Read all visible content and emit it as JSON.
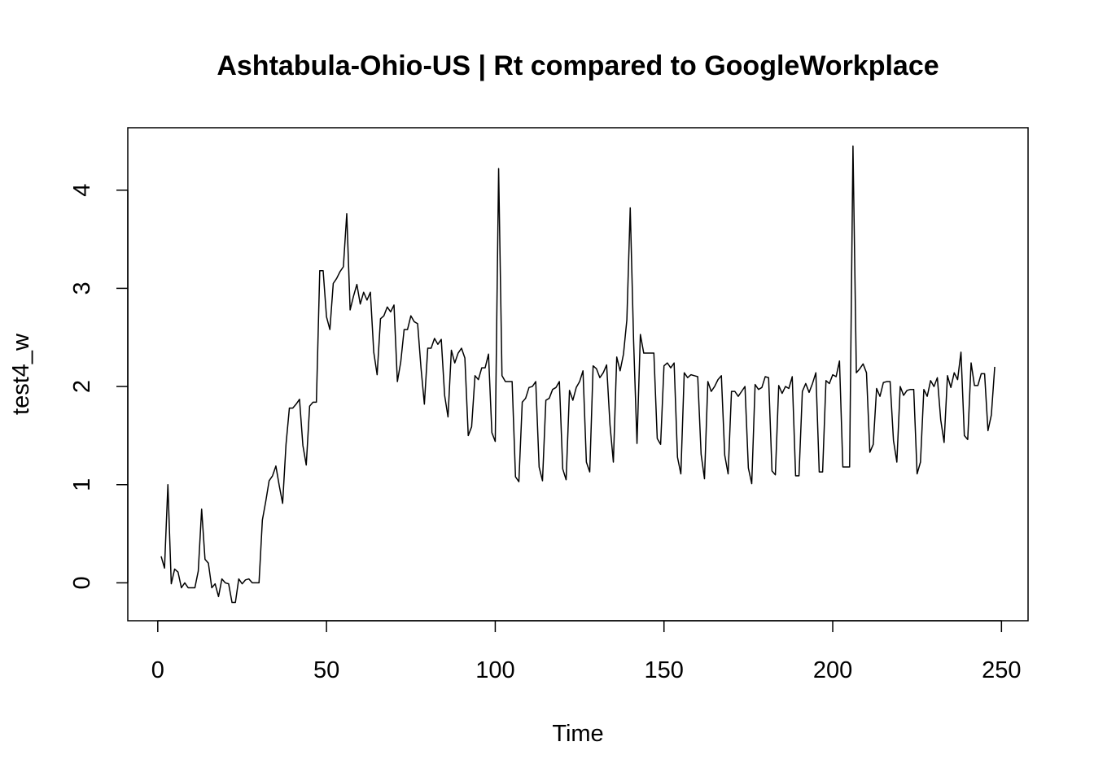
{
  "chart_data": {
    "type": "line",
    "title": "Ashtabula-Ohio-US | Rt compared to GoogleWorkplace",
    "x_label": "Time",
    "y_label": "test4_w",
    "x": [
      1,
      2,
      3,
      4,
      5,
      6,
      7,
      8,
      9,
      10,
      11,
      12,
      13,
      14,
      15,
      16,
      17,
      18,
      19,
      20,
      21,
      22,
      23,
      24,
      25,
      26,
      27,
      28,
      29,
      30,
      31,
      32,
      33,
      34,
      35,
      36,
      37,
      38,
      39,
      40,
      41,
      42,
      43,
      44,
      45,
      46,
      47,
      48,
      49,
      50,
      51,
      52,
      53,
      54,
      55,
      56,
      57,
      58,
      59,
      60,
      61,
      62,
      63,
      64,
      65,
      66,
      67,
      68,
      69,
      70,
      71,
      72,
      73,
      74,
      75,
      76,
      77,
      78,
      79,
      80,
      81,
      82,
      83,
      84,
      85,
      86,
      87,
      88,
      89,
      90,
      91,
      92,
      93,
      94,
      95,
      96,
      97,
      98,
      99,
      100,
      101,
      102,
      103,
      104,
      105,
      106,
      107,
      108,
      109,
      110,
      111,
      112,
      113,
      114,
      115,
      116,
      117,
      118,
      119,
      120,
      121,
      122,
      123,
      124,
      125,
      126,
      127,
      128,
      129,
      130,
      131,
      132,
      133,
      134,
      135,
      136,
      137,
      138,
      139,
      140,
      141,
      142,
      143,
      144,
      145,
      146,
      147,
      148,
      149,
      150,
      151,
      152,
      153,
      154,
      155,
      156,
      157,
      158,
      159,
      160,
      161,
      162,
      163,
      164,
      165,
      166,
      167,
      168,
      169,
      170,
      171,
      172,
      173,
      174,
      175,
      176,
      177,
      178,
      179,
      180,
      181,
      182,
      183,
      184,
      185,
      186,
      187,
      188,
      189,
      190,
      191,
      192,
      193,
      194,
      195,
      196,
      197,
      198,
      199,
      200,
      201,
      202,
      203,
      204,
      205,
      206,
      207,
      208,
      209,
      210,
      211,
      212,
      213,
      214,
      215,
      216,
      217,
      218,
      219,
      220,
      221,
      222,
      223,
      224,
      225,
      226,
      227,
      228,
      229,
      230,
      231,
      232,
      233,
      234,
      235,
      236,
      237,
      238,
      239,
      240,
      241,
      242,
      243,
      244,
      245,
      246,
      247,
      248
    ],
    "series": [
      {
        "color": "#000000",
        "values": [
          0.27,
          0.15,
          1.0,
          -0.01,
          0.14,
          0.11,
          -0.05,
          0.0,
          -0.05,
          -0.05,
          -0.05,
          0.12,
          0.75,
          0.24,
          0.2,
          -0.05,
          -0.01,
          -0.14,
          0.04,
          0.0,
          -0.01,
          -0.2,
          -0.2,
          0.04,
          -0.01,
          0.03,
          0.04,
          0.0,
          0.0,
          0.0,
          0.64,
          0.83,
          1.04,
          1.09,
          1.19,
          0.99,
          0.81,
          1.41,
          1.78,
          1.78,
          1.82,
          1.87,
          1.4,
          1.2,
          1.8,
          1.84,
          1.84,
          3.18,
          3.18,
          2.71,
          2.58,
          3.05,
          3.1,
          3.17,
          3.22,
          3.76,
          2.78,
          2.92,
          3.04,
          2.84,
          2.96,
          2.88,
          2.96,
          2.35,
          2.12,
          2.69,
          2.72,
          2.81,
          2.76,
          2.83,
          2.05,
          2.25,
          2.58,
          2.58,
          2.72,
          2.66,
          2.64,
          2.19,
          1.82,
          2.39,
          2.39,
          2.49,
          2.43,
          2.48,
          1.91,
          1.69,
          2.37,
          2.24,
          2.34,
          2.39,
          2.29,
          1.5,
          1.59,
          2.11,
          2.07,
          2.19,
          2.19,
          2.33,
          1.53,
          1.44,
          4.22,
          2.11,
          2.05,
          2.05,
          2.05,
          1.08,
          1.03,
          1.84,
          1.88,
          1.99,
          2.0,
          2.05,
          1.18,
          1.04,
          1.86,
          1.88,
          1.97,
          1.99,
          2.05,
          1.16,
          1.05,
          1.96,
          1.86,
          1.99,
          2.05,
          2.16,
          1.23,
          1.13,
          2.21,
          2.18,
          2.09,
          2.14,
          2.22,
          1.61,
          1.23,
          2.3,
          2.16,
          2.33,
          2.68,
          3.82,
          2.46,
          1.42,
          2.53,
          2.34,
          2.34,
          2.34,
          2.34,
          1.47,
          1.41,
          2.21,
          2.24,
          2.19,
          2.24,
          1.28,
          1.11,
          2.14,
          2.09,
          2.12,
          2.11,
          2.1,
          1.31,
          1.06,
          2.05,
          1.95,
          2.0,
          2.07,
          2.11,
          1.3,
          1.11,
          1.95,
          1.95,
          1.9,
          1.95,
          2.0,
          1.17,
          1.01,
          2.02,
          1.97,
          1.99,
          2.1,
          2.09,
          1.14,
          1.1,
          2.01,
          1.93,
          2.0,
          1.98,
          2.1,
          1.09,
          1.09,
          1.95,
          2.03,
          1.94,
          2.03,
          2.14,
          1.13,
          1.13,
          2.06,
          2.03,
          2.12,
          2.1,
          2.26,
          1.18,
          1.18,
          1.18,
          4.45,
          2.14,
          2.18,
          2.23,
          2.14,
          1.33,
          1.41,
          1.98,
          1.9,
          2.04,
          2.05,
          2.05,
          1.45,
          1.23,
          2.0,
          1.91,
          1.96,
          1.97,
          1.97,
          1.11,
          1.23,
          1.97,
          1.9,
          2.06,
          2.0,
          2.09,
          1.66,
          1.43,
          2.11,
          1.99,
          2.14,
          2.07,
          2.35,
          1.5,
          1.46,
          2.24,
          2.01,
          2.01,
          2.13,
          2.13,
          1.55,
          1.71,
          2.2
        ]
      }
    ],
    "xlim": [
      -8.88,
      257.88
    ],
    "ylim": [
      -0.386,
      4.636
    ],
    "xticks": [
      0,
      50,
      100,
      150,
      200,
      250
    ],
    "yticks": [
      0,
      1,
      2,
      3,
      4
    ]
  }
}
